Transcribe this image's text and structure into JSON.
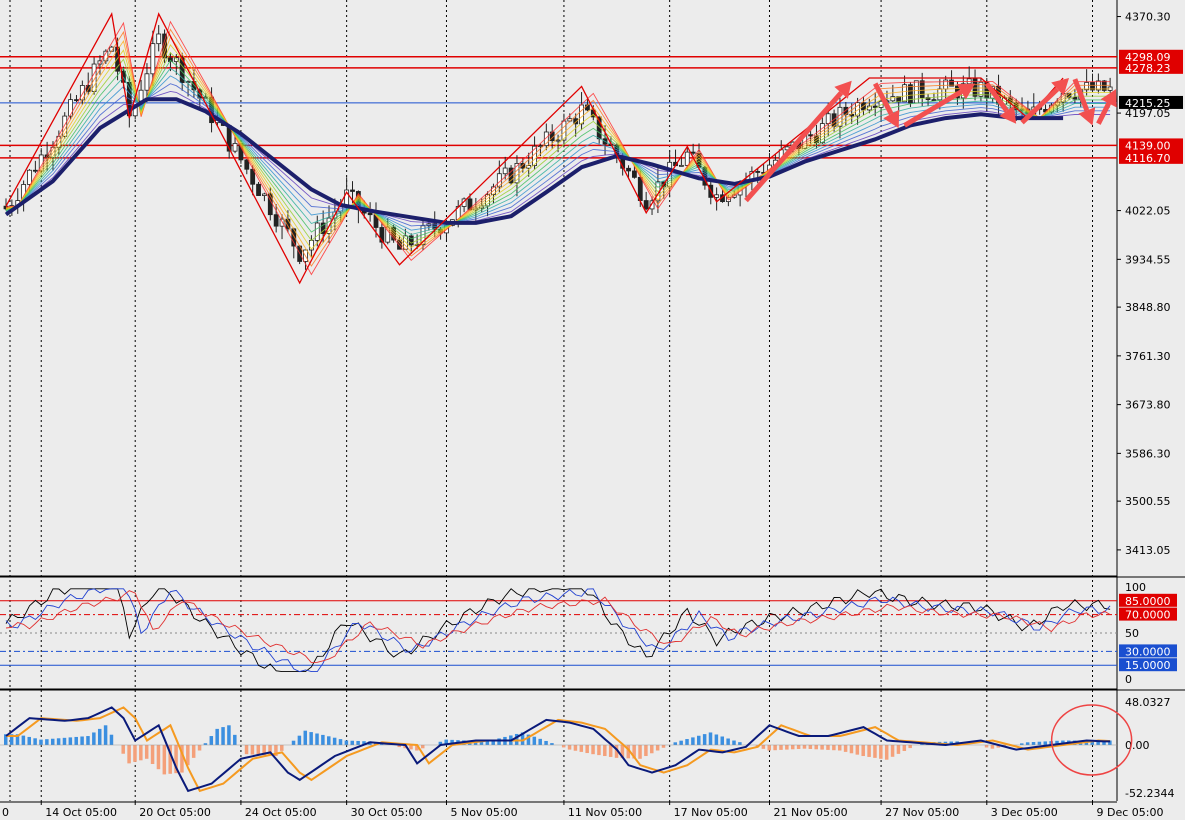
{
  "chart_data": {
    "type": "line",
    "instrument_view": "price chart with oscillator and MACD histogram",
    "main_panel": {
      "y_ticks": [
        "4370.30",
        "4197.05",
        "4022.05",
        "3934.55",
        "3848.80",
        "3761.30",
        "3673.80",
        "3586.30",
        "3500.55",
        "3413.05"
      ],
      "y_tick_values": [
        4370.3,
        4197.05,
        4022.05,
        3934.55,
        3848.8,
        3761.3,
        3673.8,
        3586.3,
        3500.55,
        3413.05
      ],
      "ylim": [
        3368,
        4400
      ],
      "horizontal_levels": [
        {
          "label": "4298.09",
          "value": 4298.09,
          "color": "#e00000"
        },
        {
          "label": "4278.23",
          "value": 4278.23,
          "color": "#e00000"
        },
        {
          "label": "4215.25",
          "value": 4215.25,
          "color": "#1a4fd0",
          "current": true
        },
        {
          "label": "4139.00",
          "value": 4139.0,
          "color": "#e00000"
        },
        {
          "label": "4116.70",
          "value": 4116.7,
          "color": "#e00000"
        }
      ],
      "zigzag": [
        {
          "i": 0,
          "v": 4030
        },
        {
          "i": 18,
          "v": 4375
        },
        {
          "i": 21,
          "v": 4188
        },
        {
          "i": 26,
          "v": 4375
        },
        {
          "i": 50,
          "v": 3892
        },
        {
          "i": 58,
          "v": 4055
        },
        {
          "i": 67,
          "v": 3925
        },
        {
          "i": 98,
          "v": 4245
        },
        {
          "i": 109,
          "v": 4018
        },
        {
          "i": 116,
          "v": 4137
        },
        {
          "i": 121,
          "v": 4038
        },
        {
          "i": 147,
          "v": 4260
        },
        {
          "i": 166,
          "v": 4260
        },
        {
          "i": 174,
          "v": 4188
        },
        {
          "i": 180,
          "v": 4260
        }
      ],
      "ma_path": [
        {
          "i": 0,
          "v": 4015
        },
        {
          "i": 8,
          "v": 4075
        },
        {
          "i": 16,
          "v": 4170
        },
        {
          "i": 24,
          "v": 4222
        },
        {
          "i": 29,
          "v": 4222
        },
        {
          "i": 34,
          "v": 4200
        },
        {
          "i": 40,
          "v": 4160
        },
        {
          "i": 46,
          "v": 4110
        },
        {
          "i": 52,
          "v": 4060
        },
        {
          "i": 57,
          "v": 4032
        },
        {
          "i": 63,
          "v": 4020
        },
        {
          "i": 69,
          "v": 4010
        },
        {
          "i": 75,
          "v": 4000
        },
        {
          "i": 80,
          "v": 4000
        },
        {
          "i": 86,
          "v": 4012
        },
        {
          "i": 92,
          "v": 4055
        },
        {
          "i": 98,
          "v": 4100
        },
        {
          "i": 104,
          "v": 4120
        },
        {
          "i": 110,
          "v": 4105
        },
        {
          "i": 118,
          "v": 4080
        },
        {
          "i": 124,
          "v": 4070
        },
        {
          "i": 130,
          "v": 4083
        },
        {
          "i": 136,
          "v": 4110
        },
        {
          "i": 142,
          "v": 4130
        },
        {
          "i": 148,
          "v": 4150
        },
        {
          "i": 154,
          "v": 4175
        },
        {
          "i": 160,
          "v": 4188
        },
        {
          "i": 166,
          "v": 4195
        },
        {
          "i": 172,
          "v": 4188
        },
        {
          "i": 180,
          "v": 4188
        }
      ],
      "arrows": [
        {
          "from": {
            "i": 126,
            "v": 4040
          },
          "to": {
            "i": 144,
            "v": 4255
          }
        },
        {
          "from": {
            "i": 148,
            "v": 4250
          },
          "to": {
            "i": 152,
            "v": 4170
          }
        },
        {
          "from": {
            "i": 153,
            "v": 4175
          },
          "to": {
            "i": 165,
            "v": 4250
          }
        },
        {
          "from": {
            "i": 167,
            "v": 4250
          },
          "to": {
            "i": 172,
            "v": 4178
          }
        },
        {
          "from": {
            "i": 173,
            "v": 4180
          },
          "to": {
            "i": 181,
            "v": 4260
          }
        },
        {
          "from": {
            "i": 182,
            "v": 4258
          },
          "to": {
            "i": 185,
            "v": 4175
          }
        },
        {
          "from": {
            "i": 186,
            "v": 4178
          },
          "to": {
            "i": 189,
            "v": 4240
          }
        }
      ]
    },
    "oscillator_panel": {
      "y_ticks": [
        "100",
        "85.0000",
        "70.0000",
        "50",
        "30.0000",
        "15.0000",
        "0"
      ],
      "ylim": [
        0,
        100
      ],
      "levels": [
        {
          "label": "85.0000",
          "value": 85,
          "color": "#e00000",
          "tagged": true
        },
        {
          "label": "70.0000",
          "value": 70,
          "color": "#e00000",
          "tagged": true
        },
        {
          "label": "50",
          "value": 50,
          "color": "#888888",
          "tagged": false
        },
        {
          "label": "30.0000",
          "value": 30,
          "color": "#1a4fd0",
          "tagged": true
        },
        {
          "label": "15.0000",
          "value": 15,
          "color": "#1a4fd0",
          "tagged": true
        }
      ]
    },
    "macd_panel": {
      "y_ticks": [
        "48.0327",
        "0.00",
        "-52.2344"
      ],
      "ylim": [
        -52.2344,
        48.0327
      ],
      "macd_path": [
        {
          "i": 0,
          "v": 10
        },
        {
          "i": 4,
          "v": 30
        },
        {
          "i": 10,
          "v": 27
        },
        {
          "i": 14,
          "v": 30
        },
        {
          "i": 18,
          "v": 42
        },
        {
          "i": 20,
          "v": 30
        },
        {
          "i": 22,
          "v": 5
        },
        {
          "i": 26,
          "v": 22
        },
        {
          "i": 29,
          "v": -25
        },
        {
          "i": 31,
          "v": -50
        },
        {
          "i": 35,
          "v": -42
        },
        {
          "i": 40,
          "v": -15
        },
        {
          "i": 45,
          "v": -8
        },
        {
          "i": 48,
          "v": -30
        },
        {
          "i": 50,
          "v": -38
        },
        {
          "i": 56,
          "v": -12
        },
        {
          "i": 62,
          "v": 3
        },
        {
          "i": 68,
          "v": 0
        },
        {
          "i": 70,
          "v": -20
        },
        {
          "i": 74,
          "v": 0
        },
        {
          "i": 80,
          "v": 5
        },
        {
          "i": 86,
          "v": 5
        },
        {
          "i": 92,
          "v": 28
        },
        {
          "i": 96,
          "v": 25
        },
        {
          "i": 100,
          "v": 18
        },
        {
          "i": 104,
          "v": -5
        },
        {
          "i": 106,
          "v": -22
        },
        {
          "i": 110,
          "v": -30
        },
        {
          "i": 114,
          "v": -22
        },
        {
          "i": 118,
          "v": -5
        },
        {
          "i": 122,
          "v": -8
        },
        {
          "i": 126,
          "v": -2
        },
        {
          "i": 130,
          "v": 22
        },
        {
          "i": 135,
          "v": 10
        },
        {
          "i": 140,
          "v": 10
        },
        {
          "i": 146,
          "v": 20
        },
        {
          "i": 150,
          "v": 5
        },
        {
          "i": 160,
          "v": 0
        },
        {
          "i": 166,
          "v": 5
        },
        {
          "i": 172,
          "v": -5
        },
        {
          "i": 178,
          "v": 0
        },
        {
          "i": 184,
          "v": 5
        },
        {
          "i": 187,
          "v": 4
        }
      ],
      "histogram_sample": [
        {
          "i": 2,
          "v": 12
        },
        {
          "i": 6,
          "v": 6
        },
        {
          "i": 14,
          "v": 10
        },
        {
          "i": 17,
          "v": 22
        },
        {
          "i": 21,
          "v": -20
        },
        {
          "i": 24,
          "v": -15
        },
        {
          "i": 27,
          "v": -32
        },
        {
          "i": 30,
          "v": -30
        },
        {
          "i": 36,
          "v": 18
        },
        {
          "i": 38,
          "v": 22
        },
        {
          "i": 41,
          "v": -10
        },
        {
          "i": 46,
          "v": -12
        },
        {
          "i": 51,
          "v": 16
        },
        {
          "i": 58,
          "v": 5
        },
        {
          "i": 62,
          "v": 4
        },
        {
          "i": 70,
          "v": -6
        },
        {
          "i": 75,
          "v": 6
        },
        {
          "i": 82,
          "v": 4
        },
        {
          "i": 88,
          "v": 14
        },
        {
          "i": 96,
          "v": -5
        },
        {
          "i": 100,
          "v": -10
        },
        {
          "i": 104,
          "v": -14
        },
        {
          "i": 108,
          "v": -15
        },
        {
          "i": 114,
          "v": 3
        },
        {
          "i": 120,
          "v": 14
        },
        {
          "i": 124,
          "v": 5
        },
        {
          "i": 130,
          "v": -6
        },
        {
          "i": 136,
          "v": -4
        },
        {
          "i": 142,
          "v": -6
        },
        {
          "i": 146,
          "v": -12
        },
        {
          "i": 150,
          "v": -16
        },
        {
          "i": 156,
          "v": 3
        },
        {
          "i": 162,
          "v": 4
        },
        {
          "i": 168,
          "v": -4
        },
        {
          "i": 174,
          "v": 3
        },
        {
          "i": 180,
          "v": 5
        },
        {
          "i": 184,
          "v": 5
        }
      ]
    },
    "x_ticks": [
      {
        "label": "14 Oct 05:00",
        "i": 6
      },
      {
        "label": "20 Oct 05:00",
        "i": 22
      },
      {
        "label": "24 Oct 05:00",
        "i": 40
      },
      {
        "label": "30 Oct 05:00",
        "i": 58
      },
      {
        "label": "5 Nov 05:00",
        "i": 75
      },
      {
        "label": "11 Nov 05:00",
        "i": 95
      },
      {
        "label": "17 Nov 05:00",
        "i": 113
      },
      {
        "label": "21 Nov 05:00",
        "i": 130
      },
      {
        "label": "27 Nov 05:00",
        "i": 149
      },
      {
        "label": "3 Dec 05:00",
        "i": 167
      },
      {
        "label": "9 Dec 05:00",
        "i": 185
      }
    ],
    "x_first_label": "0",
    "annotation": {
      "shape": "ellipse",
      "color": "#e44",
      "near_i": 184
    }
  }
}
